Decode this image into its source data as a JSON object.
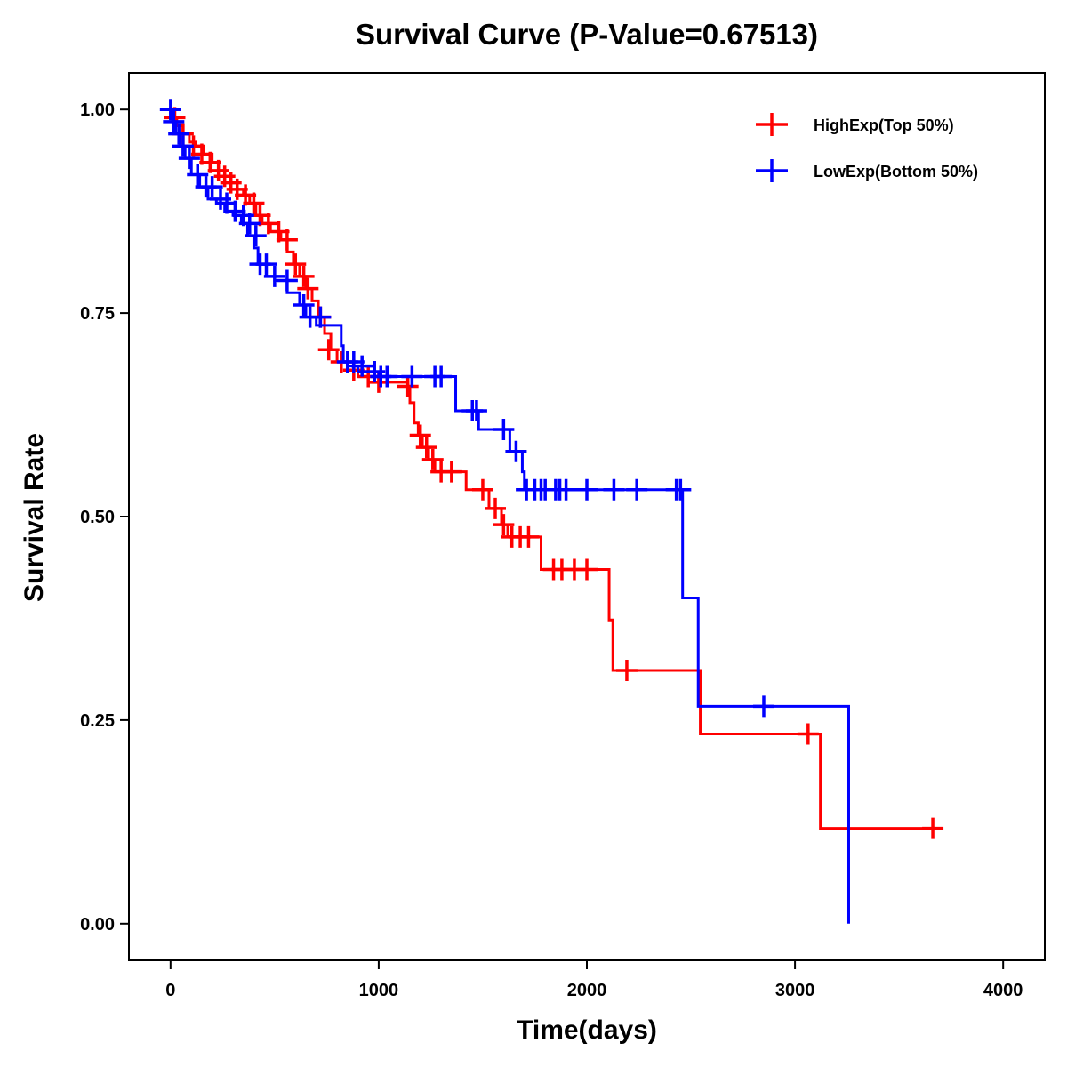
{
  "chart_data": {
    "type": "line",
    "subtype": "kaplan-meier-step",
    "title": "Survival Curve (P-Value=0.67513)",
    "xlabel": "Time(days)",
    "ylabel": "Survival Rate",
    "xlim": [
      -200,
      4200
    ],
    "ylim": [
      -0.045,
      1.045
    ],
    "xticks": [
      0,
      1000,
      2000,
      3000,
      4000
    ],
    "xtick_labels": [
      "0",
      "1000",
      "2000",
      "3000",
      "4000"
    ],
    "yticks": [
      0,
      0.25,
      0.5,
      0.75,
      1.0
    ],
    "ytick_labels": [
      "0.00",
      "0.25",
      "0.50",
      "0.75",
      "1.00"
    ],
    "grid": false,
    "legend_position": "top-right",
    "series": [
      {
        "name": "HighExp(Top 50%)",
        "color": "#ff0000",
        "steps": [
          [
            0,
            1.0
          ],
          [
            10,
            0.99
          ],
          [
            30,
            0.98
          ],
          [
            60,
            0.97
          ],
          [
            90,
            0.96
          ],
          [
            120,
            0.955
          ],
          [
            160,
            0.945
          ],
          [
            200,
            0.935
          ],
          [
            230,
            0.925
          ],
          [
            260,
            0.918
          ],
          [
            290,
            0.91
          ],
          [
            320,
            0.902
          ],
          [
            350,
            0.895
          ],
          [
            380,
            0.885
          ],
          [
            410,
            0.87
          ],
          [
            440,
            0.86
          ],
          [
            480,
            0.85
          ],
          [
            530,
            0.84
          ],
          [
            560,
            0.825
          ],
          [
            590,
            0.81
          ],
          [
            620,
            0.795
          ],
          [
            650,
            0.78
          ],
          [
            680,
            0.765
          ],
          [
            710,
            0.745
          ],
          [
            740,
            0.725
          ],
          [
            770,
            0.705
          ],
          [
            800,
            0.69
          ],
          [
            850,
            0.68
          ],
          [
            900,
            0.672
          ],
          [
            1000,
            0.665
          ],
          [
            1140,
            0.66
          ],
          [
            1150,
            0.64
          ],
          [
            1170,
            0.615
          ],
          [
            1190,
            0.6
          ],
          [
            1210,
            0.585
          ],
          [
            1240,
            0.57
          ],
          [
            1270,
            0.555
          ],
          [
            1420,
            0.533
          ],
          [
            1530,
            0.51
          ],
          [
            1590,
            0.49
          ],
          [
            1620,
            0.475
          ],
          [
            1780,
            0.435
          ],
          [
            2107,
            0.373
          ],
          [
            2125,
            0.311
          ],
          [
            2545,
            0.233
          ],
          [
            3122,
            0.117
          ],
          [
            3700,
            0.117
          ]
        ],
        "censored": [
          [
            20,
            0.99
          ],
          [
            60,
            0.97
          ],
          [
            110,
            0.955
          ],
          [
            150,
            0.945
          ],
          [
            190,
            0.935
          ],
          [
            230,
            0.925
          ],
          [
            260,
            0.918
          ],
          [
            290,
            0.91
          ],
          [
            320,
            0.902
          ],
          [
            360,
            0.895
          ],
          [
            400,
            0.885
          ],
          [
            430,
            0.87
          ],
          [
            470,
            0.86
          ],
          [
            520,
            0.85
          ],
          [
            560,
            0.84
          ],
          [
            600,
            0.81
          ],
          [
            640,
            0.795
          ],
          [
            660,
            0.78
          ],
          [
            720,
            0.745
          ],
          [
            760,
            0.705
          ],
          [
            820,
            0.69
          ],
          [
            880,
            0.68
          ],
          [
            950,
            0.672
          ],
          [
            1000,
            0.665
          ],
          [
            1140,
            0.66
          ],
          [
            1200,
            0.6
          ],
          [
            1230,
            0.585
          ],
          [
            1260,
            0.57
          ],
          [
            1300,
            0.555
          ],
          [
            1350,
            0.555
          ],
          [
            1500,
            0.533
          ],
          [
            1560,
            0.51
          ],
          [
            1600,
            0.49
          ],
          [
            1640,
            0.475
          ],
          [
            1680,
            0.475
          ],
          [
            1720,
            0.475
          ],
          [
            1840,
            0.435
          ],
          [
            1880,
            0.435
          ],
          [
            1940,
            0.435
          ],
          [
            2000,
            0.435
          ],
          [
            2192,
            0.311
          ],
          [
            3063,
            0.233
          ],
          [
            3662,
            0.117
          ]
        ]
      },
      {
        "name": "LowExp(Bottom 50%)",
        "color": "#0000ff",
        "steps": [
          [
            0,
            1.0
          ],
          [
            10,
            0.985
          ],
          [
            25,
            0.97
          ],
          [
            45,
            0.955
          ],
          [
            70,
            0.94
          ],
          [
            100,
            0.92
          ],
          [
            140,
            0.905
          ],
          [
            180,
            0.89
          ],
          [
            220,
            0.885
          ],
          [
            260,
            0.875
          ],
          [
            300,
            0.87
          ],
          [
            340,
            0.86
          ],
          [
            370,
            0.845
          ],
          [
            400,
            0.83
          ],
          [
            420,
            0.81
          ],
          [
            460,
            0.795
          ],
          [
            500,
            0.79
          ],
          [
            560,
            0.775
          ],
          [
            620,
            0.76
          ],
          [
            650,
            0.745
          ],
          [
            700,
            0.735
          ],
          [
            820,
            0.71
          ],
          [
            830,
            0.69
          ],
          [
            850,
            0.685
          ],
          [
            900,
            0.678
          ],
          [
            1000,
            0.672
          ],
          [
            1370,
            0.63
          ],
          [
            1480,
            0.607
          ],
          [
            1630,
            0.58
          ],
          [
            1690,
            0.555
          ],
          [
            1700,
            0.533
          ],
          [
            2460,
            0.4
          ],
          [
            2535,
            0.267
          ],
          [
            3258,
            0.0
          ]
        ],
        "censored": [
          [
            0,
            1.0
          ],
          [
            15,
            0.985
          ],
          [
            40,
            0.97
          ],
          [
            60,
            0.955
          ],
          [
            90,
            0.94
          ],
          [
            130,
            0.92
          ],
          [
            170,
            0.905
          ],
          [
            200,
            0.905
          ],
          [
            240,
            0.89
          ],
          [
            270,
            0.885
          ],
          [
            310,
            0.875
          ],
          [
            350,
            0.87
          ],
          [
            380,
            0.86
          ],
          [
            410,
            0.845
          ],
          [
            430,
            0.81
          ],
          [
            460,
            0.81
          ],
          [
            500,
            0.795
          ],
          [
            560,
            0.79
          ],
          [
            640,
            0.76
          ],
          [
            670,
            0.745
          ],
          [
            720,
            0.745
          ],
          [
            850,
            0.69
          ],
          [
            880,
            0.69
          ],
          [
            920,
            0.685
          ],
          [
            980,
            0.678
          ],
          [
            1010,
            0.672
          ],
          [
            1040,
            0.672
          ],
          [
            1160,
            0.672
          ],
          [
            1270,
            0.672
          ],
          [
            1300,
            0.672
          ],
          [
            1450,
            0.63
          ],
          [
            1470,
            0.63
          ],
          [
            1600,
            0.607
          ],
          [
            1660,
            0.58
          ],
          [
            1710,
            0.533
          ],
          [
            1750,
            0.533
          ],
          [
            1780,
            0.533
          ],
          [
            1800,
            0.533
          ],
          [
            1850,
            0.533
          ],
          [
            1870,
            0.533
          ],
          [
            1900,
            0.533
          ],
          [
            2000,
            0.533
          ],
          [
            2130,
            0.533
          ],
          [
            2240,
            0.533
          ],
          [
            2430,
            0.533
          ],
          [
            2450,
            0.533
          ],
          [
            2850,
            0.267
          ]
        ]
      }
    ]
  }
}
